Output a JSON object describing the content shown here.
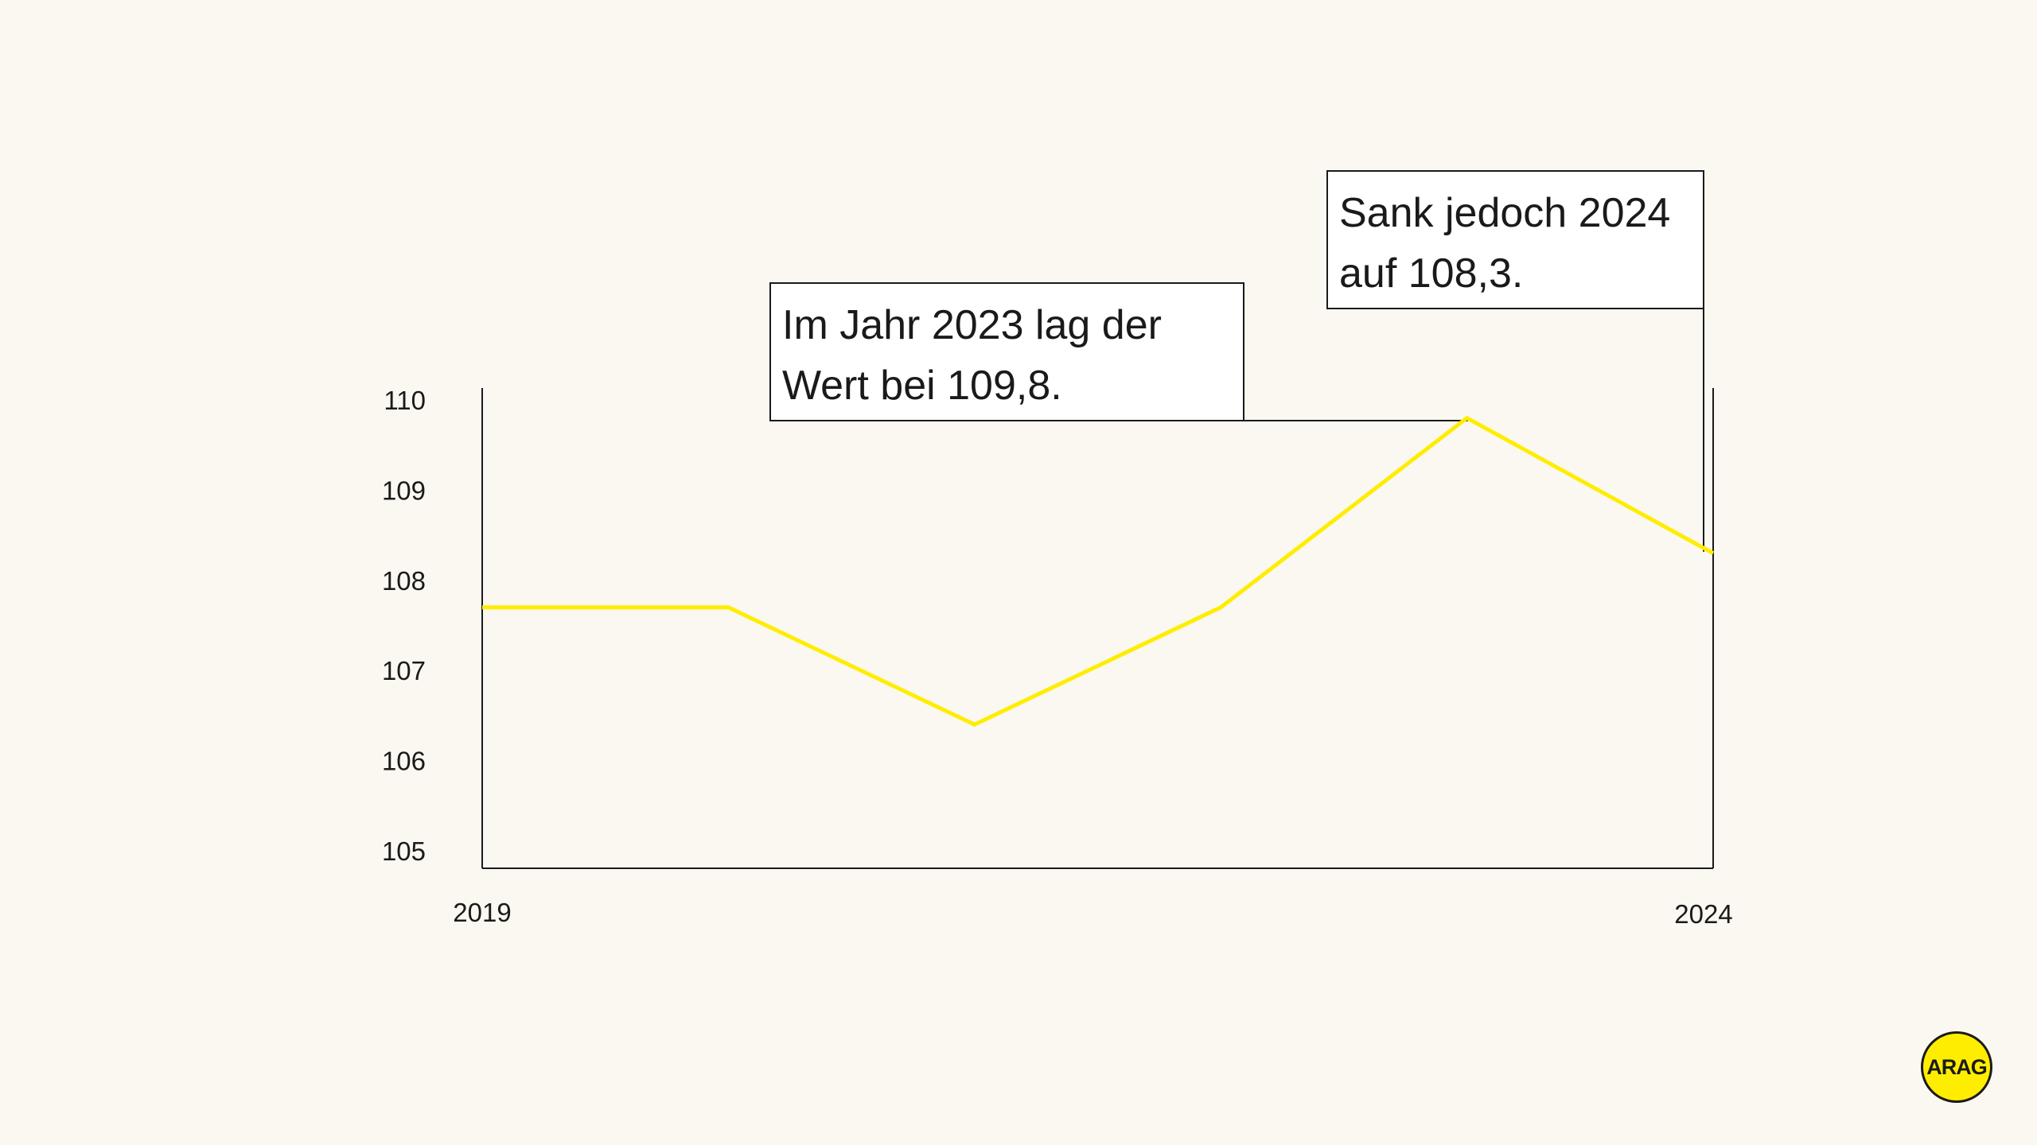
{
  "chart_data": {
    "type": "line",
    "title": "",
    "xlabel": "",
    "ylabel": "",
    "x": [
      2019,
      2020,
      2021,
      2022,
      2023,
      2024
    ],
    "xtick_labels": [
      "2019",
      "2024"
    ],
    "yticks": [
      {
        "value": 105,
        "label": "105"
      },
      {
        "value": 106,
        "label": "106"
      },
      {
        "value": 107,
        "label": "107"
      },
      {
        "value": 108,
        "label": "108"
      },
      {
        "value": 109,
        "label": "109"
      },
      {
        "value": 110,
        "label": "110"
      }
    ],
    "ylim": [
      104.8,
      110.1
    ],
    "grid": false,
    "series": [
      {
        "values": [
          107.7,
          107.7,
          106.4,
          107.7,
          109.8,
          108.3
        ],
        "color": "#FFED00"
      }
    ],
    "annotations": [
      {
        "x": 2023,
        "y": 109.8,
        "text": "Im Jahr 2023 lag der\nWert bei 109,8."
      },
      {
        "x": 2024,
        "y": 108.3,
        "text": "Sank jedoch 2024\nauf 108,3."
      }
    ]
  },
  "logo": {
    "text": "ARAG",
    "color": "#FFED00"
  }
}
